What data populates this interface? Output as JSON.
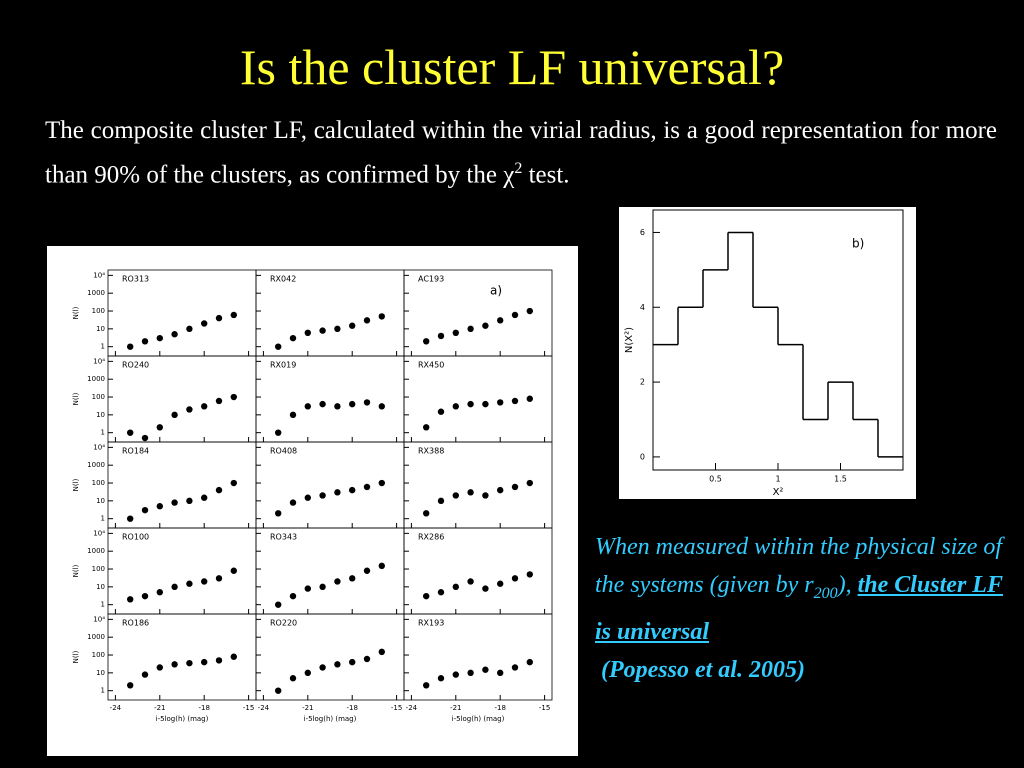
{
  "slide": {
    "title": "Is the cluster LF universal?",
    "paragraph": {
      "text": "The composite cluster LF, calculated within the virial radius, is a good representation for more than 90% of the clusters, as confirmed by the",
      "symbol": "χ",
      "sup": "2",
      "end": "test."
    },
    "caption": {
      "text": "When measured within the physical size of the systems (given by r",
      "sub": "200",
      "after": "),",
      "emphasis": "the Cluster LF is universal",
      "reference": "(Popesso et al. 2005)"
    }
  },
  "chart_data": [
    {
      "type": "scatter",
      "panel_label": "a)",
      "log_scale": true,
      "x_label": "i-5log(h) (mag)",
      "y_label": "N(l)",
      "xlim": [
        -24.5,
        -14.5
      ],
      "xticks": [
        -24,
        -21,
        -18,
        -15
      ],
      "ylim": [
        0.3,
        20000
      ],
      "yticks": [
        1,
        10,
        100,
        1000,
        {
          "value": 10000,
          "label": "10⁴"
        }
      ],
      "x": [
        -23,
        -22,
        -21,
        -20,
        -19,
        -18,
        -17,
        -16
      ],
      "panels": [
        {
          "name": "RO313",
          "values": [
            1,
            2,
            3,
            5,
            10,
            20,
            40,
            60
          ]
        },
        {
          "name": "RX042",
          "values": [
            1,
            3,
            6,
            8,
            10,
            15,
            30,
            50
          ]
        },
        {
          "name": "AC193",
          "values": [
            2,
            4,
            6,
            10,
            15,
            30,
            60,
            100
          ]
        },
        {
          "name": "RO240",
          "values": [
            1,
            0.5,
            2,
            10,
            20,
            30,
            60,
            100
          ]
        },
        {
          "name": "RX019",
          "values": [
            1,
            10,
            30,
            40,
            30,
            40,
            50,
            30
          ]
        },
        {
          "name": "RX450",
          "values": [
            2,
            15,
            30,
            40,
            40,
            50,
            60,
            80
          ]
        },
        {
          "name": "RO184",
          "values": [
            1,
            3,
            5,
            8,
            10,
            15,
            40,
            100
          ]
        },
        {
          "name": "RO408",
          "values": [
            2,
            8,
            15,
            20,
            30,
            40,
            60,
            100
          ]
        },
        {
          "name": "RX388",
          "values": [
            2,
            10,
            20,
            30,
            20,
            40,
            60,
            100
          ]
        },
        {
          "name": "RO100",
          "values": [
            2,
            3,
            5,
            10,
            15,
            20,
            30,
            80
          ]
        },
        {
          "name": "RO343",
          "values": [
            1,
            3,
            8,
            10,
            20,
            30,
            80,
            150
          ]
        },
        {
          "name": "RX286",
          "values": [
            3,
            5,
            10,
            20,
            8,
            15,
            30,
            50
          ]
        },
        {
          "name": "RO186",
          "values": [
            2,
            8,
            20,
            30,
            35,
            40,
            50,
            80
          ]
        },
        {
          "name": "RO220",
          "values": [
            1,
            5,
            10,
            20,
            30,
            40,
            60,
            150
          ]
        },
        {
          "name": "RX193",
          "values": [
            2,
            5,
            8,
            10,
            15,
            10,
            20,
            40
          ]
        }
      ]
    },
    {
      "type": "histogram",
      "panel_label": "b)",
      "x_label": "X²",
      "y_label": "N(X²)",
      "bins": [
        0,
        0.2,
        0.4,
        0.6,
        0.8,
        1.0,
        1.2,
        1.4,
        1.6,
        1.8,
        2.0
      ],
      "values": [
        3,
        4,
        5,
        6,
        4,
        3,
        1,
        2,
        1,
        0
      ],
      "xlim": [
        0,
        2
      ],
      "xticks": [
        0.5,
        1,
        1.5
      ],
      "ylim": [
        -0.35,
        6.6
      ],
      "yticks": [
        0,
        2,
        4,
        6
      ],
      "color": "#000000"
    }
  ]
}
